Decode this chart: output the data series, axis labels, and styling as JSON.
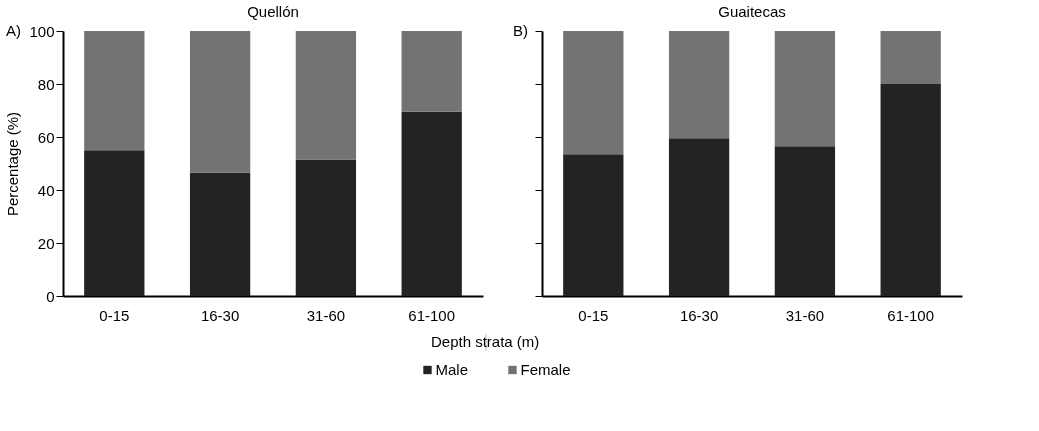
{
  "chart_data": [
    {
      "type": "bar",
      "title": "Quellón",
      "ylabel": "Percentage (%)",
      "xlabel": "Depth strata (m)",
      "categories": [
        "0-15",
        "16-30",
        "31-60",
        "61-100"
      ],
      "stacked": true,
      "ylim": [
        0,
        100
      ],
      "yticks": [
        0,
        20,
        40,
        60,
        80,
        100
      ],
      "grid": false,
      "legend": "bottom",
      "annotations": [
        "A)"
      ],
      "series": [
        {
          "name": "Male",
          "color": "#232323",
          "values": [
            55,
            46.5,
            51.5,
            69.5
          ]
        },
        {
          "name": "Female",
          "color": "#737373",
          "values": [
            45,
            53.5,
            48.5,
            30.5
          ]
        }
      ]
    },
    {
      "type": "bar",
      "title": "Guaitecas",
      "categories": [
        "0-15",
        "16-30",
        "31-60",
        "61-100"
      ],
      "stacked": true,
      "ylim": [
        0,
        100
      ],
      "yticks": [
        0,
        20,
        40,
        60,
        80,
        100
      ],
      "grid": false,
      "tick_labels": "x",
      "annotations": [
        "B)"
      ],
      "series": [
        {
          "color": "#232323",
          "values": [
            53.5,
            59.5,
            56.5,
            80
          ]
        },
        {
          "color": "#737373",
          "values": [
            46.5,
            40.5,
            43.5,
            20
          ]
        }
      ]
    }
  ]
}
